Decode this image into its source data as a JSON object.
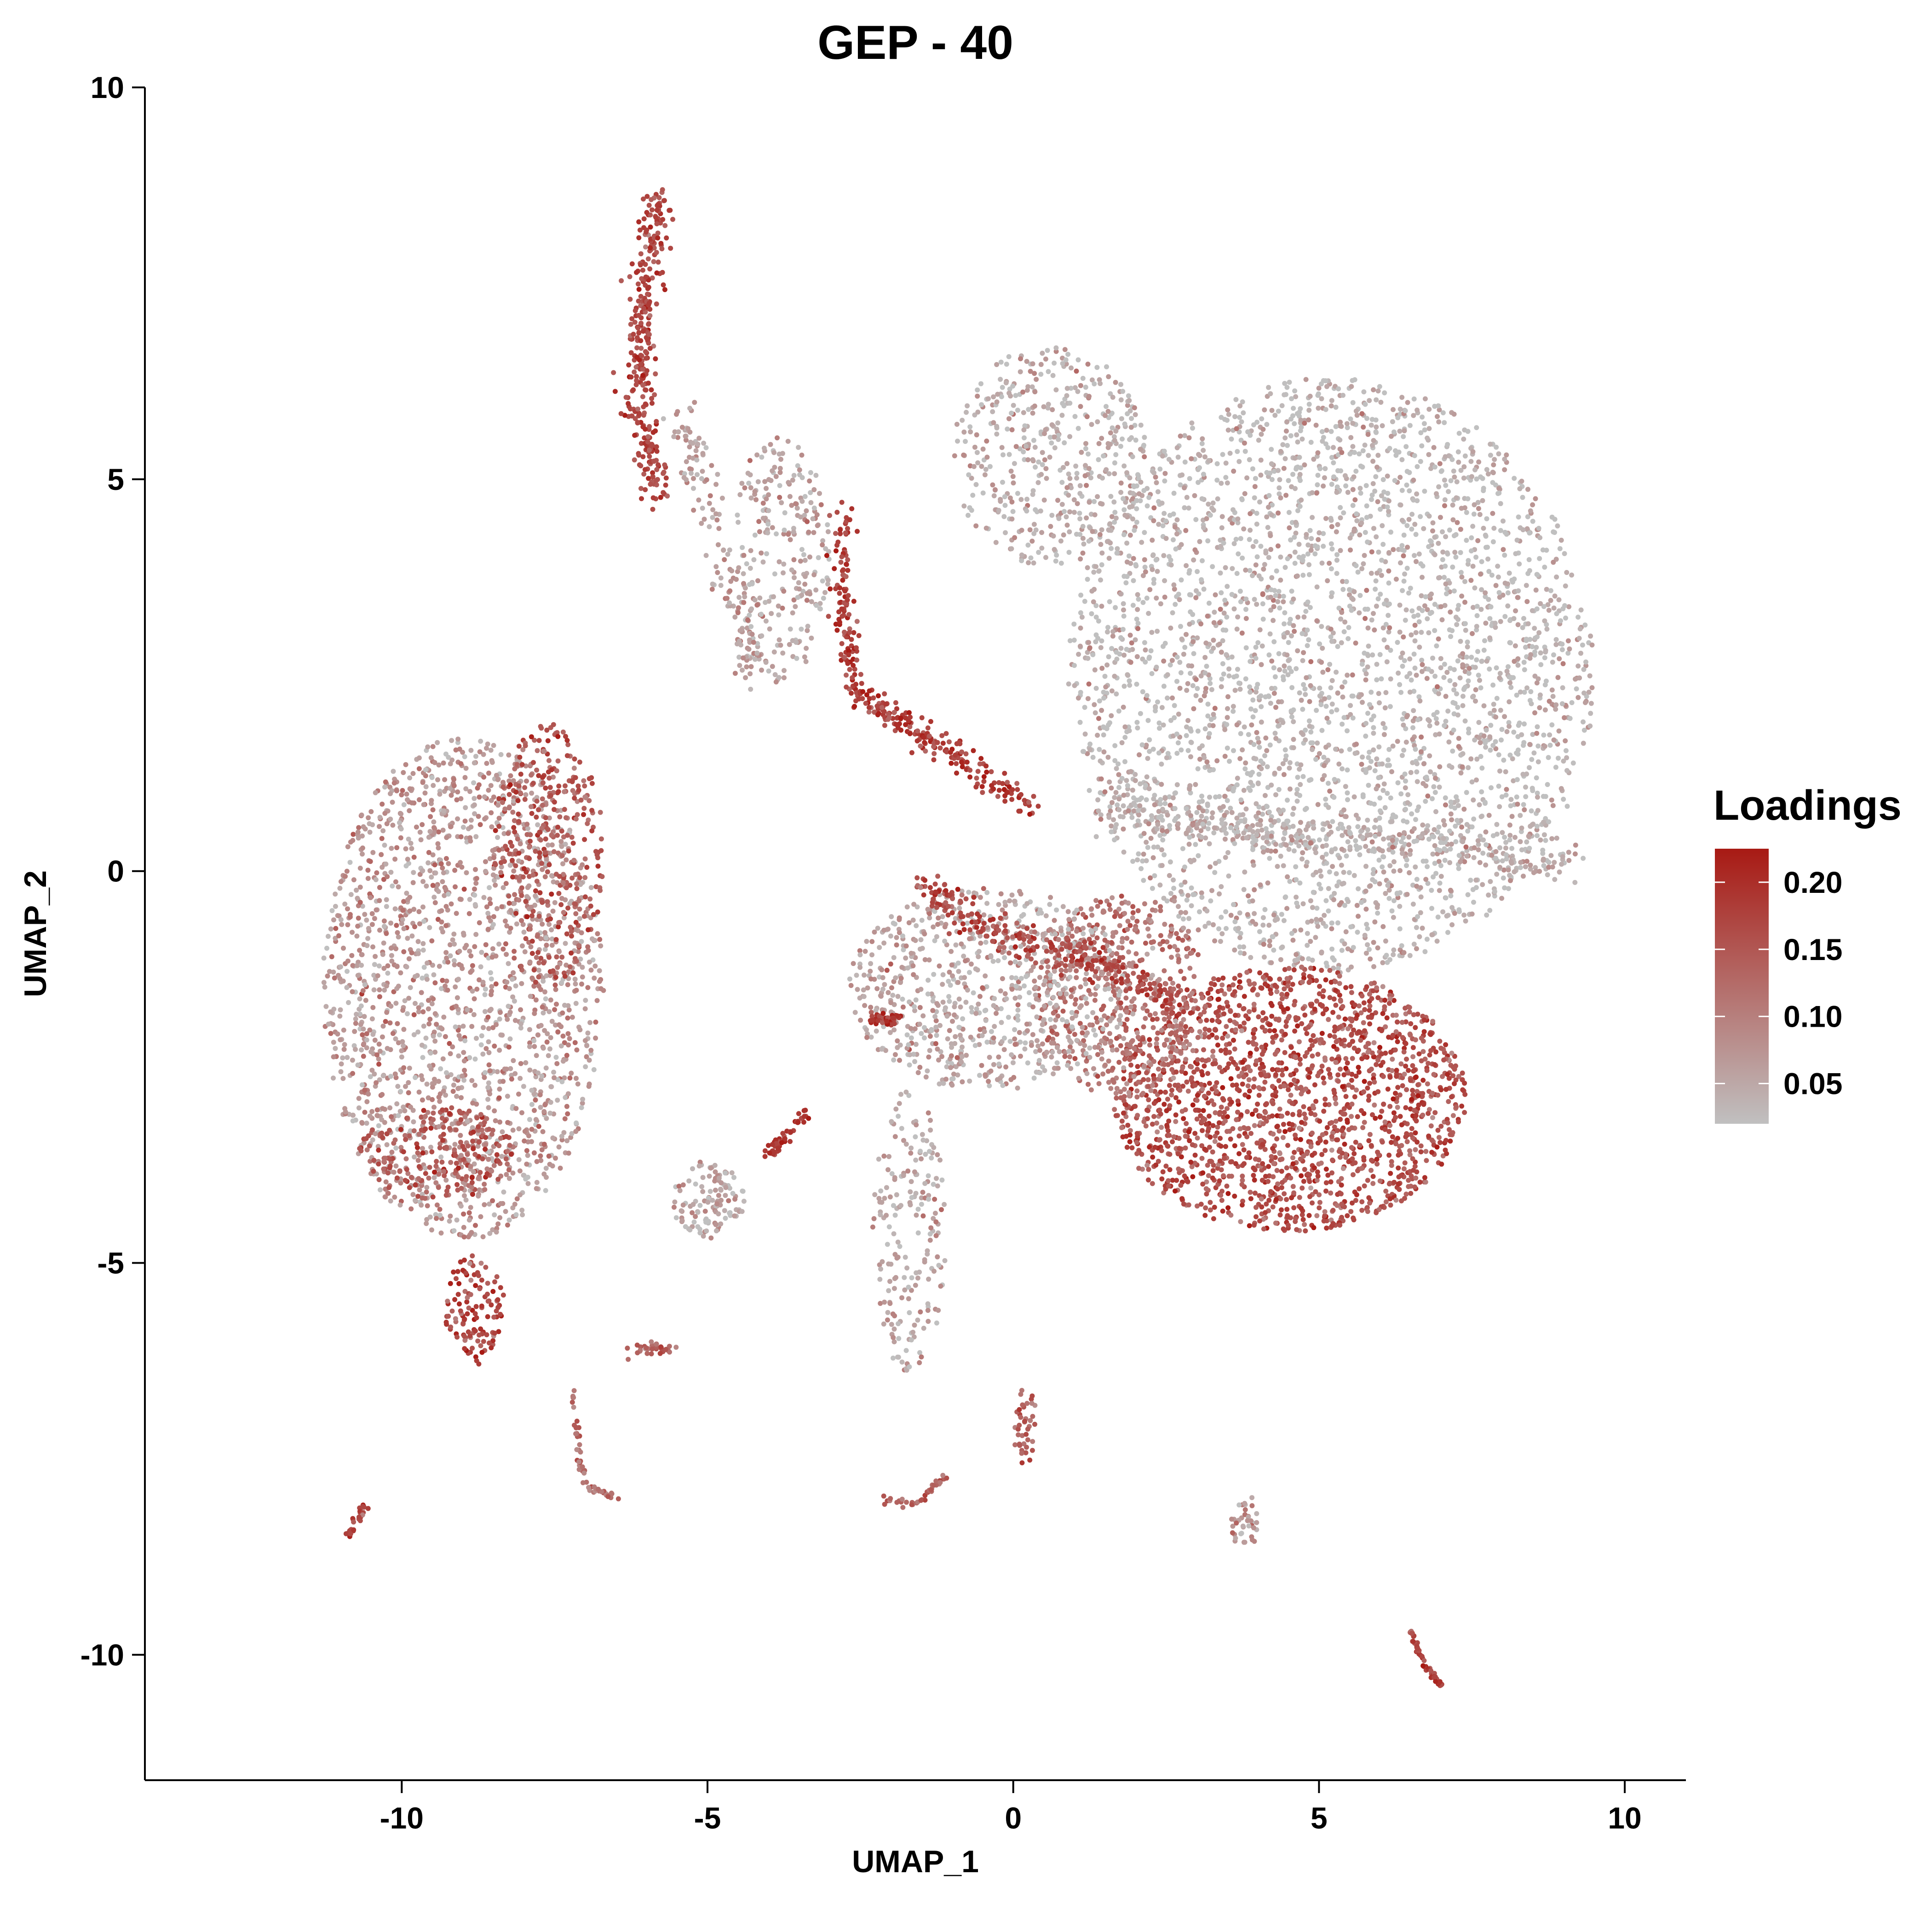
{
  "chart_data": {
    "type": "scatter",
    "title": "GEP - 40",
    "xlabel": "UMAP_1",
    "ylabel": "UMAP_2",
    "xlim": [
      -14.2,
      11.0
    ],
    "ylim": [
      -11.6,
      10.0
    ],
    "x_ticks": [
      -10,
      -5,
      0,
      5,
      10
    ],
    "x_tick_labels": [
      "-10",
      "-5",
      "0",
      "5",
      "10"
    ],
    "y_ticks": [
      10,
      5,
      0,
      -5,
      -10
    ],
    "y_tick_labels": [
      "10",
      "5",
      "0",
      "-5",
      "-10"
    ],
    "grid": false,
    "legend": {
      "title": "Loadings",
      "placement": "right",
      "color_low": "#c0c0c0",
      "color_high": "#a81a14",
      "range": [
        0.02,
        0.225
      ],
      "ticks": [
        0.2,
        0.15,
        0.1,
        0.05
      ],
      "tick_labels": [
        "0.20",
        "0.15",
        "0.10",
        "0.05"
      ]
    },
    "clusters": [
      {
        "cx": 5.2,
        "cy": 2.5,
        "rx": 4.3,
        "ry": 3.8,
        "n": 3200,
        "loading": 0.03
      },
      {
        "cx": 0.6,
        "cy": 5.3,
        "rx": 1.6,
        "ry": 1.4,
        "n": 450,
        "loading": 0.04
      },
      {
        "cx": 4.5,
        "cy": -2.9,
        "rx": 2.9,
        "ry": 1.7,
        "n": 1800,
        "loading": 0.16
      },
      {
        "cx": 1.8,
        "cy": -1.6,
        "rx": 1.4,
        "ry": 1.3,
        "n": 500,
        "loading": 0.11
      },
      {
        "cx": -0.4,
        "cy": -1.5,
        "rx": 2.3,
        "ry": 1.3,
        "n": 750,
        "loading": 0.05
      },
      {
        "cx": -9.0,
        "cy": -1.5,
        "rx": 2.3,
        "ry": 3.2,
        "n": 1800,
        "loading": 0.07
      },
      {
        "cx": -7.6,
        "cy": 0.2,
        "rx": 0.9,
        "ry": 1.7,
        "n": 350,
        "loading": 0.15
      },
      {
        "cx": -9.4,
        "cy": -3.6,
        "rx": 1.3,
        "ry": 0.6,
        "n": 220,
        "loading": 0.15
      },
      {
        "cx": -8.8,
        "cy": -5.6,
        "rx": 0.5,
        "ry": 0.7,
        "n": 120,
        "loading": 0.17
      },
      {
        "cx": -1.7,
        "cy": -4.6,
        "rx": 0.6,
        "ry": 1.8,
        "n": 200,
        "loading": 0.05
      },
      {
        "cx": -5.0,
        "cy": -4.2,
        "rx": 0.6,
        "ry": 0.5,
        "n": 120,
        "loading": 0.05
      },
      {
        "cx": -3.8,
        "cy": 4.0,
        "rx": 0.8,
        "ry": 1.6,
        "n": 250,
        "loading": 0.05
      },
      {
        "cx": 0.2,
        "cy": -7.1,
        "rx": 0.2,
        "ry": 0.5,
        "n": 40,
        "loading": 0.14
      },
      {
        "cx": 3.8,
        "cy": -8.3,
        "rx": 0.25,
        "ry": 0.35,
        "n": 40,
        "loading": 0.07
      }
    ],
    "paths": [
      {
        "pts": [
          [
            -5.8,
            8.7
          ],
          [
            -6.0,
            7.5
          ],
          [
            -6.1,
            6.6
          ],
          [
            -6.1,
            5.7
          ],
          [
            -5.8,
            4.8
          ]
        ],
        "n": 320,
        "spread": 0.22,
        "loading": 0.17
      },
      {
        "pts": [
          [
            -5.5,
            5.8
          ],
          [
            -5.0,
            4.8
          ],
          [
            -4.6,
            3.6
          ],
          [
            -4.2,
            2.5
          ]
        ],
        "n": 150,
        "spread": 0.3,
        "loading": 0.06
      },
      {
        "pts": [
          [
            -2.8,
            4.6
          ],
          [
            -2.8,
            3.4
          ],
          [
            -2.6,
            2.3
          ],
          [
            -1.8,
            1.9
          ],
          [
            -0.8,
            1.4
          ],
          [
            0.3,
            0.8
          ]
        ],
        "n": 320,
        "spread": 0.18,
        "loading": 0.18
      },
      {
        "pts": [
          [
            -1.6,
            -0.1
          ],
          [
            -0.5,
            -0.7
          ],
          [
            0.6,
            -1.0
          ],
          [
            1.6,
            -1.2
          ],
          [
            2.7,
            -1.7
          ]
        ],
        "n": 280,
        "spread": 0.22,
        "loading": 0.17
      },
      {
        "pts": [
          [
            -2.3,
            -1.9
          ],
          [
            -1.9,
            -1.9
          ]
        ],
        "n": 40,
        "spread": 0.1,
        "loading": 0.2
      },
      {
        "pts": [
          [
            -4.0,
            -3.6
          ],
          [
            -3.4,
            -3.1
          ]
        ],
        "n": 50,
        "spread": 0.1,
        "loading": 0.18
      },
      {
        "pts": [
          [
            -10.6,
            -8.1
          ],
          [
            -10.9,
            -8.5
          ]
        ],
        "n": 30,
        "spread": 0.08,
        "loading": 0.17
      },
      {
        "pts": [
          [
            -7.2,
            -6.6
          ],
          [
            -7.1,
            -7.5
          ],
          [
            -6.9,
            -7.9
          ],
          [
            -6.5,
            -8.0
          ]
        ],
        "n": 55,
        "spread": 0.06,
        "loading": 0.12
      },
      {
        "pts": [
          [
            -6.3,
            -6.1
          ],
          [
            -5.5,
            -6.1
          ]
        ],
        "n": 35,
        "spread": 0.07,
        "loading": 0.13
      },
      {
        "pts": [
          [
            -2.1,
            -8.0
          ],
          [
            -1.6,
            -8.1
          ],
          [
            -1.1,
            -7.7
          ]
        ],
        "n": 40,
        "spread": 0.07,
        "loading": 0.13
      },
      {
        "pts": [
          [
            6.5,
            -9.7
          ],
          [
            6.7,
            -10.1
          ],
          [
            7.0,
            -10.4
          ]
        ],
        "n": 55,
        "spread": 0.04,
        "loading": 0.17
      },
      {
        "pts": [
          [
            1.4,
            0.9
          ],
          [
            3.8,
            0.5
          ],
          [
            6.4,
            0.4
          ],
          [
            9.2,
            0.1
          ]
        ],
        "n": 380,
        "spread": 0.3,
        "loading": 0.04
      }
    ]
  }
}
